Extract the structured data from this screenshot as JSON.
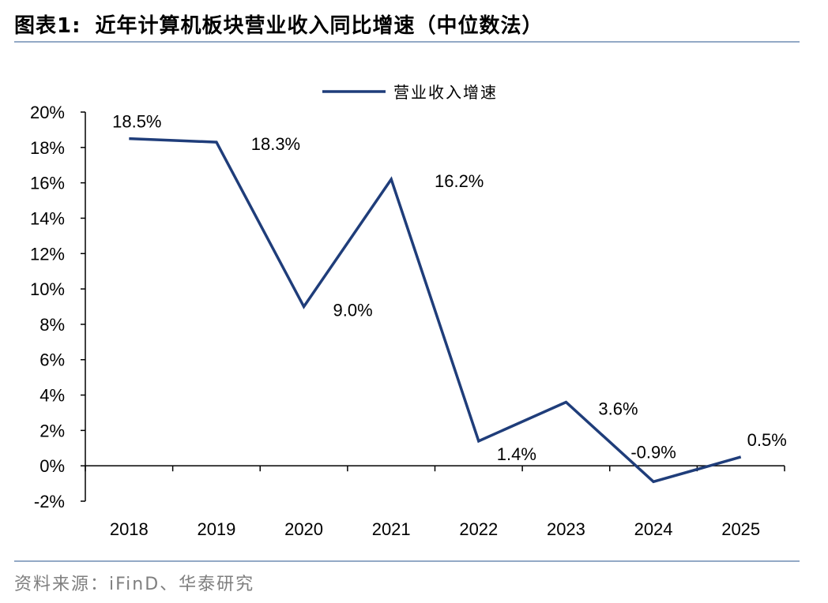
{
  "header": {
    "figure_label": "图表1:",
    "title": "近年计算机板块营业收入同比增速（中位数法）"
  },
  "footer": {
    "source": "资料来源：iFinD、华泰研究"
  },
  "colors": {
    "line": "#1f3d7a",
    "rule": "#93a9c6",
    "source_text": "#7f7f7f"
  },
  "chart_data": {
    "type": "line",
    "title": "",
    "xlabel": "",
    "ylabel": "",
    "categories": [
      "2018",
      "2019",
      "2020",
      "2021",
      "2022",
      "2023",
      "2024",
      "2025"
    ],
    "series": [
      {
        "name": "营业收入增速",
        "values": [
          18.5,
          18.3,
          9.0,
          16.2,
          1.4,
          3.6,
          -0.9,
          0.5
        ],
        "labels": [
          "18.5%",
          "18.3%",
          "9.0%",
          "16.2%",
          "1.4%",
          "3.6%",
          "-0.9%",
          "0.5%"
        ]
      }
    ],
    "ylim": [
      -2,
      20
    ],
    "yticks": [
      -2,
      0,
      2,
      4,
      6,
      8,
      10,
      12,
      14,
      16,
      18,
      20
    ],
    "ytick_labels": [
      "-2%",
      "0%",
      "2%",
      "4%",
      "6%",
      "8%",
      "10%",
      "12%",
      "14%",
      "16%",
      "18%",
      "20%"
    ],
    "grid": false,
    "legend_position": "top-center"
  }
}
